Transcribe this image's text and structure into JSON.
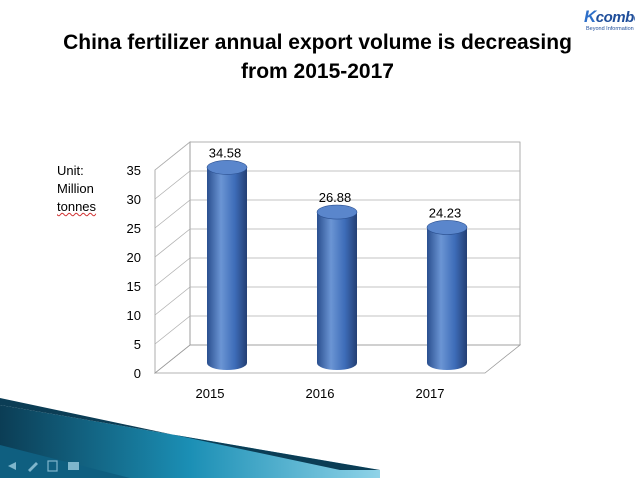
{
  "slide": {
    "title_line1": "China fertilizer annual export volume is decreasing",
    "title_line2": "from 2015-2017"
  },
  "logo": {
    "brand_k": "K",
    "brand_rest": "comber",
    "tagline": "Beyond Information"
  },
  "unit_label": {
    "line1": "Unit:",
    "line2": "Million",
    "line3": "tonnes"
  },
  "chart_data": {
    "type": "bar",
    "style": "3d-cylinder",
    "title": "China fertilizer annual export volume is decreasing from 2015-2017",
    "categories": [
      "2015",
      "2016",
      "2017"
    ],
    "values": [
      34.58,
      26.88,
      24.23
    ],
    "data_labels": [
      "34.58",
      "26.88",
      "24.23"
    ],
    "ylim": [
      0,
      35
    ],
    "yticks": [
      0,
      5,
      10,
      15,
      20,
      25,
      30,
      35
    ],
    "ytick_labels": [
      "0",
      "5",
      "10",
      "15",
      "20",
      "25",
      "30",
      "35"
    ],
    "ylabel": "Unit: Million tonnes",
    "xlabel": "",
    "grid": true,
    "bar_color": "#3d6cb8"
  },
  "colors": {
    "bar_dark": "#2a4f8f",
    "bar_light": "#6b95d4",
    "bar_top": "#5a86cc",
    "footer_dark": "#0b3d55",
    "footer_teal": "#1b8fb5",
    "footer_light": "#8fd3e8"
  },
  "footer_icons": [
    "arrow-left-icon",
    "pen-icon",
    "document-icon",
    "screen-icon"
  ]
}
